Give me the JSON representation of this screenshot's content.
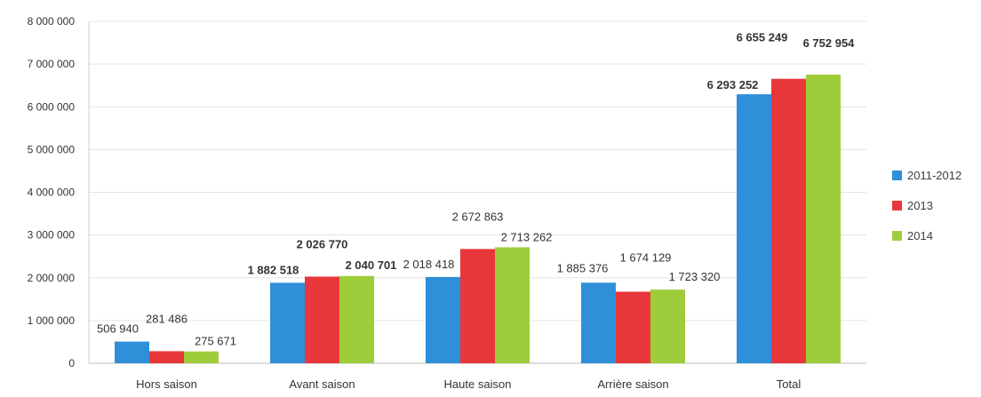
{
  "chart_data": {
    "type": "bar",
    "categories": [
      "Hors saison",
      "Avant saison",
      "Haute saison",
      "Arrière saison",
      "Total"
    ],
    "series": [
      {
        "name": "2011-2012",
        "color": "#2f8fd8",
        "values": [
          506940,
          1882518,
          2018418,
          1885376,
          6293252
        ],
        "labels": [
          "506 940",
          "1 882 518",
          "2 018 418",
          "1 885 376",
          "6 293 252"
        ]
      },
      {
        "name": "2013",
        "color": "#e8373a",
        "values": [
          281486,
          2026770,
          2672863,
          1674129,
          6655249
        ],
        "labels": [
          "281 486",
          "2 026 770",
          "2 672 863",
          "1 674 129",
          "6 655 249"
        ]
      },
      {
        "name": "2014",
        "color": "#9fcc3b",
        "values": [
          275671,
          2040701,
          2713262,
          1723320,
          6752954
        ],
        "labels": [
          "275 671",
          "2 040 701",
          "2 713 262",
          "1 723 320",
          "6 752 954"
        ]
      }
    ],
    "yticks": [
      0,
      1000000,
      2000000,
      3000000,
      4000000,
      5000000,
      6000000,
      7000000,
      8000000
    ],
    "ytick_labels": [
      "0",
      "1 000 000",
      "2 000 000",
      "3 000 000",
      "4 000 000",
      "5 000 000",
      "6 000 000",
      "7 000 000",
      "8 000 000"
    ],
    "ylim": [
      0,
      8000000
    ],
    "grid": true,
    "legend_position": "right"
  }
}
